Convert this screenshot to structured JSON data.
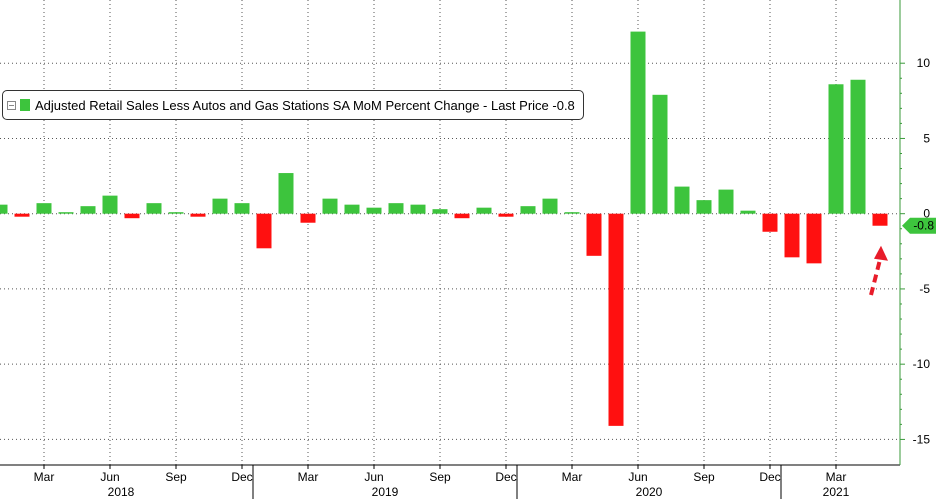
{
  "chart_data": {
    "type": "bar",
    "legend": {
      "label": "Adjusted Retail Sales Less Autos and Gas Stations SA MoM Percent Change - Last Price -0.8",
      "placement": "top-left"
    },
    "last_value_label": "-0.8",
    "series": [
      {
        "values": [
          0.6,
          -0.2,
          0.7,
          0.1,
          0.5,
          1.2,
          -0.3,
          0.7,
          0.1,
          -0.2,
          1.0,
          0.7,
          -2.3,
          2.7,
          -0.6,
          1.0,
          0.6,
          0.4,
          0.7,
          0.6,
          0.3,
          -0.3,
          0.4,
          -0.2,
          0.5,
          1.0,
          0.1,
          -2.8,
          -14.1,
          12.1,
          7.9,
          1.8,
          0.9,
          1.6,
          0.2,
          -1.2,
          -2.9,
          -3.3,
          8.6,
          8.9,
          -0.8
        ]
      }
    ],
    "positive_color": "#3dc43d",
    "negative_color": "#ff1010",
    "ylim": [
      -16.7,
      14.2
    ],
    "yticks": [
      10,
      5,
      0,
      -5,
      -10,
      -15
    ],
    "month_ticks": [
      {
        "label": "Mar",
        "index": 2
      },
      {
        "label": "Jun",
        "index": 5
      },
      {
        "label": "Sep",
        "index": 8
      },
      {
        "label": "Dec",
        "index": 11
      },
      {
        "label": "Mar",
        "index": 14
      },
      {
        "label": "Jun",
        "index": 17
      },
      {
        "label": "Sep",
        "index": 20
      },
      {
        "label": "Dec",
        "index": 23
      },
      {
        "label": "Mar",
        "index": 26
      },
      {
        "label": "Jun",
        "index": 29
      },
      {
        "label": "Sep",
        "index": 32
      },
      {
        "label": "Dec",
        "index": 35
      },
      {
        "label": "Mar",
        "index": 38
      }
    ],
    "year_labels": [
      {
        "label": "2018",
        "center": 5.5
      },
      {
        "label": "2019",
        "center": 17.5
      },
      {
        "label": "2020",
        "center": 29.5
      },
      {
        "label": "2021",
        "center": 38.0
      }
    ],
    "year_separators": [
      11.5,
      23.5,
      35.5
    ],
    "grid": true,
    "annotation": "red dashed arrow pointing to the last bar"
  }
}
